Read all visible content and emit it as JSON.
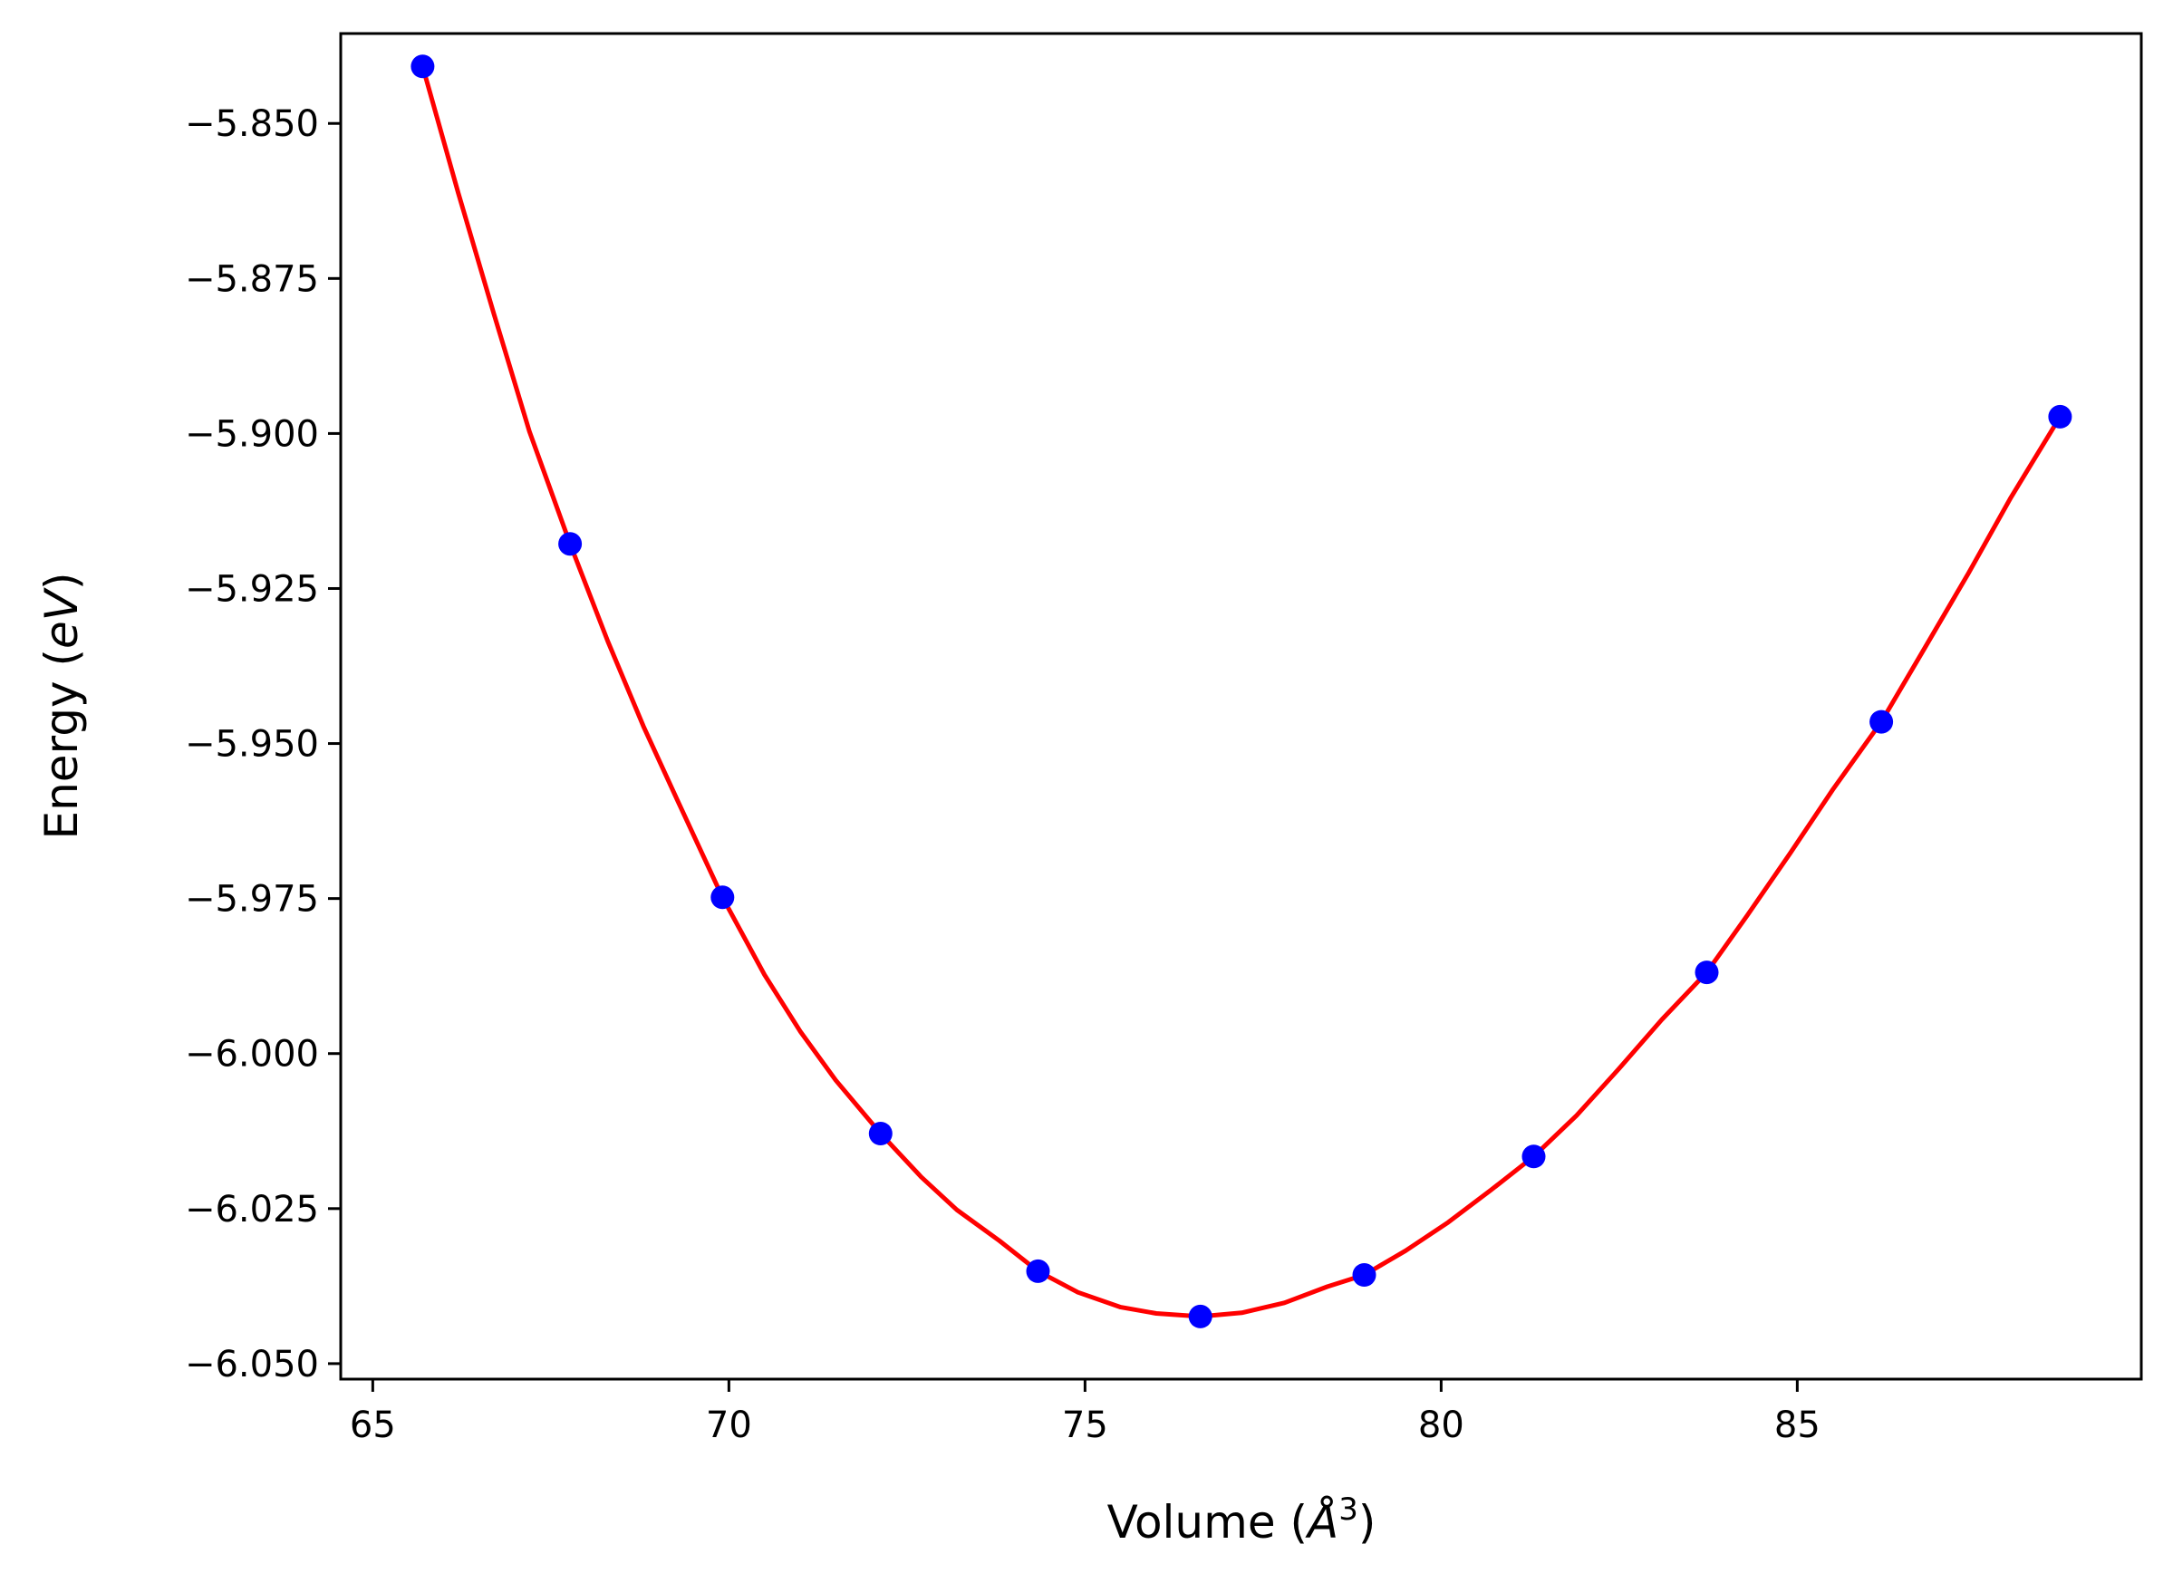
{
  "chart_data": {
    "type": "scatter",
    "xlabel": "Volume (",
    "xlabel_unit": "Å",
    "xlabel_exp": "3",
    "xlabel_close": ")",
    "ylabel": "Energy (",
    "ylabel_unit": "eV",
    "ylabel_close": ")",
    "xlim": [
      64.55,
      89.83
    ],
    "ylim": [
      -6.0525,
      -5.8355
    ],
    "xticks": [
      65,
      70,
      75,
      80,
      85
    ],
    "xtick_labels": [
      "65",
      "70",
      "75",
      "80",
      "85"
    ],
    "yticks": [
      -5.85,
      -5.875,
      -5.9,
      -5.925,
      -5.95,
      -5.975,
      -6.0,
      -6.025,
      -6.05
    ],
    "ytick_labels": [
      "−5.850",
      "−5.875",
      "−5.900",
      "−5.925",
      "−5.950",
      "−5.975",
      "−6.000",
      "−6.025",
      "−6.050"
    ],
    "grid": false,
    "series": [
      {
        "kind": "points",
        "color": "#0000ff",
        "x": [
          65.7,
          67.77,
          69.91,
          72.13,
          74.34,
          76.62,
          78.92,
          81.3,
          83.73,
          86.18,
          88.69
        ],
        "y": [
          -5.8408,
          -5.9178,
          -5.9748,
          -6.0129,
          -6.0351,
          -6.0424,
          -6.0357,
          -6.0166,
          -5.9869,
          -5.9465,
          -5.8973
        ]
      },
      {
        "kind": "fit-curve",
        "color": "#ff0000",
        "x": [
          65.7,
          66.2,
          66.7,
          67.2,
          67.77,
          68.3,
          68.8,
          69.3,
          69.91,
          70.5,
          71.0,
          71.5,
          72.13,
          72.7,
          73.2,
          73.8,
          74.34,
          74.9,
          75.5,
          76.0,
          76.62,
          77.2,
          77.8,
          78.4,
          78.92,
          79.5,
          80.1,
          80.7,
          81.3,
          81.9,
          82.5,
          83.1,
          83.73,
          84.3,
          84.9,
          85.5,
          86.18,
          86.8,
          87.4,
          88.0,
          88.69
        ],
        "y": [
          -5.8408,
          -5.8612,
          -5.8807,
          -5.8997,
          -5.9178,
          -5.9335,
          -5.9472,
          -5.9597,
          -5.9748,
          -5.9873,
          -5.9964,
          -6.0043,
          -6.0129,
          -6.0199,
          -6.0252,
          -6.0302,
          -6.0351,
          -6.0385,
          -6.0409,
          -6.0419,
          -6.0424,
          -6.0418,
          -6.0402,
          -6.0376,
          -6.0357,
          -6.0318,
          -6.0272,
          -6.022,
          -6.0166,
          -6.01,
          -6.0024,
          -5.9945,
          -5.9869,
          -5.9777,
          -5.9677,
          -5.9574,
          -5.9465,
          -5.9344,
          -5.9226,
          -5.9103,
          -5.8973
        ]
      }
    ]
  }
}
